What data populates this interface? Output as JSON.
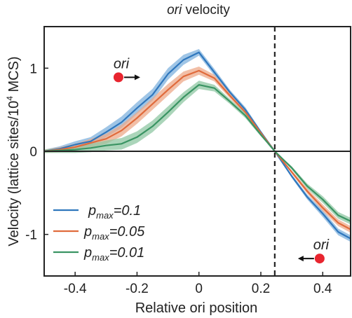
{
  "chart_data": {
    "type": "line",
    "title": "ori velocity",
    "title_italic_part": "ori",
    "title_rest": " velocity",
    "xlabel": "Relative ori position",
    "ylabel": "Velocity (lattice sites/10",
    "ylabel_sup": "4",
    "ylabel_end": " MCS)",
    "xlim": [
      -0.5,
      0.49
    ],
    "ylim": [
      -1.5,
      1.5
    ],
    "xticks": [
      -0.4,
      -0.2,
      0,
      0.2,
      0.4
    ],
    "xtick_labels": [
      "-0.4",
      "-0.2",
      "0",
      "0.2",
      "0.4"
    ],
    "yticks": [
      -1,
      0,
      1
    ],
    "ytick_labels": [
      "-1",
      "0",
      "1"
    ],
    "zero_line": 0,
    "vline_x": 0.245,
    "legend_position": "bottom-left",
    "legend": [
      {
        "base": "p",
        "sub": "max",
        "suffix": "=0.1"
      },
      {
        "base": "p",
        "sub": "max",
        "suffix": "=0.05"
      },
      {
        "base": "p",
        "sub": "max",
        "suffix": "=0.01"
      }
    ],
    "annotations": [
      {
        "text": "ori",
        "marker_x": -0.26,
        "marker_y": 0.89,
        "arrow_dir": "right",
        "marker_color": "#e8252f"
      },
      {
        "text": "ori",
        "marker_x": 0.39,
        "marker_y": -1.29,
        "arrow_dir": "left",
        "marker_color": "#e8252f"
      }
    ],
    "x": [
      -0.5,
      -0.45,
      -0.4,
      -0.35,
      -0.3,
      -0.25,
      -0.2,
      -0.15,
      -0.1,
      -0.05,
      0,
      0.05,
      0.1,
      0.15,
      0.2,
      0.245,
      0.3,
      0.35,
      0.4,
      0.45,
      0.49
    ],
    "series": [
      {
        "name": "pmax=0.1",
        "color": "#2f77bd",
        "band_color": "#7fb2dd",
        "values": [
          0.0,
          0.03,
          0.08,
          0.12,
          0.23,
          0.35,
          0.52,
          0.68,
          0.93,
          1.1,
          1.19,
          0.95,
          0.71,
          0.5,
          0.23,
          0.0,
          -0.3,
          -0.55,
          -0.75,
          -0.97,
          -1.05
        ],
        "err": [
          0.02,
          0.03,
          0.04,
          0.05,
          0.06,
          0.07,
          0.07,
          0.07,
          0.07,
          0.06,
          0.04,
          0.04,
          0.03,
          0.03,
          0.02,
          0.0,
          0.02,
          0.03,
          0.04,
          0.04,
          0.04
        ]
      },
      {
        "name": "pmax=0.05",
        "color": "#e06b3c",
        "band_color": "#eda98a",
        "values": [
          0.0,
          0.02,
          0.05,
          0.1,
          0.15,
          0.25,
          0.4,
          0.57,
          0.74,
          0.9,
          0.97,
          0.88,
          0.67,
          0.47,
          0.22,
          0.0,
          -0.25,
          -0.48,
          -0.68,
          -0.86,
          -0.94
        ],
        "err": [
          0.02,
          0.03,
          0.04,
          0.05,
          0.06,
          0.07,
          0.07,
          0.07,
          0.07,
          0.06,
          0.05,
          0.04,
          0.03,
          0.03,
          0.02,
          0.0,
          0.02,
          0.03,
          0.04,
          0.04,
          0.04
        ]
      },
      {
        "name": "pmax=0.01",
        "color": "#3a9463",
        "band_color": "#8fc7a3",
        "values": [
          0.0,
          0.01,
          0.02,
          0.04,
          0.07,
          0.09,
          0.17,
          0.3,
          0.47,
          0.65,
          0.8,
          0.76,
          0.6,
          0.43,
          0.2,
          0.0,
          -0.2,
          -0.42,
          -0.58,
          -0.77,
          -0.84
        ],
        "err": [
          0.02,
          0.03,
          0.04,
          0.05,
          0.06,
          0.07,
          0.07,
          0.07,
          0.07,
          0.06,
          0.05,
          0.04,
          0.03,
          0.03,
          0.02,
          0.0,
          0.02,
          0.03,
          0.04,
          0.04,
          0.04
        ]
      }
    ]
  }
}
